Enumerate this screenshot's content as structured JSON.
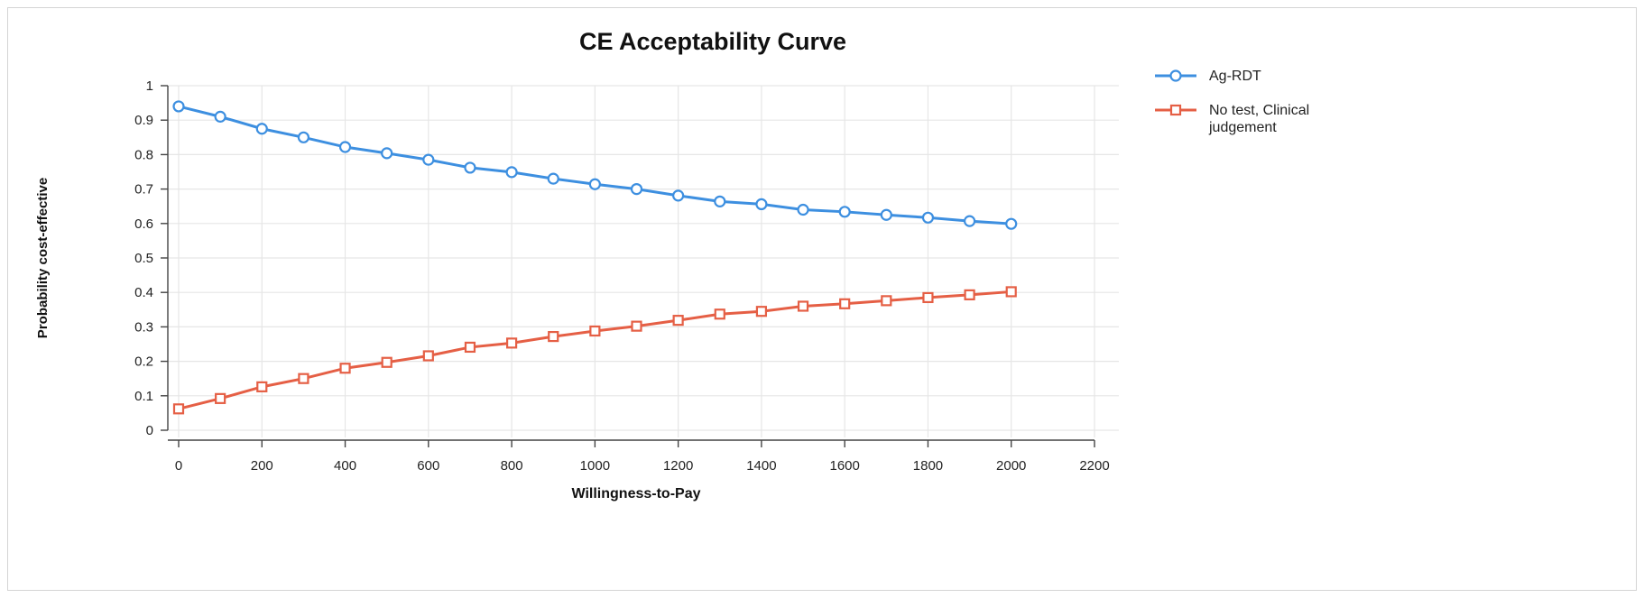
{
  "chart_data": {
    "type": "line",
    "title": "CE Acceptability Curve",
    "xlabel": "Willingness-to-Pay",
    "ylabel": "Probability cost-effective",
    "xlim": [
      0,
      2200
    ],
    "ylim": [
      0,
      1
    ],
    "x_ticks": [
      "0",
      "200",
      "400",
      "600",
      "800",
      "1000",
      "1200",
      "1400",
      "1600",
      "1800",
      "2000",
      "2200"
    ],
    "y_ticks": [
      "0",
      "0.1",
      "0.2",
      "0.3",
      "0.4",
      "0.5",
      "0.6",
      "0.7",
      "0.8",
      "0.9",
      "1"
    ],
    "grid": true,
    "legend_position": "right",
    "x": [
      0,
      100,
      200,
      300,
      400,
      500,
      600,
      700,
      800,
      900,
      1000,
      1100,
      1200,
      1300,
      1400,
      1500,
      1600,
      1700,
      1800,
      1900,
      2000
    ],
    "series": [
      {
        "name": "Ag-RDT",
        "color": "#3d8fe0",
        "marker": "circle",
        "values": [
          0.94,
          0.91,
          0.875,
          0.85,
          0.822,
          0.804,
          0.785,
          0.762,
          0.749,
          0.73,
          0.714,
          0.7,
          0.681,
          0.664,
          0.656,
          0.64,
          0.634,
          0.625,
          0.617,
          0.607,
          0.599
        ]
      },
      {
        "name": "No test, Clinical judgement",
        "color": "#e55f45",
        "marker": "square",
        "values": [
          0.062,
          0.092,
          0.126,
          0.15,
          0.18,
          0.197,
          0.216,
          0.241,
          0.253,
          0.272,
          0.288,
          0.302,
          0.319,
          0.337,
          0.345,
          0.36,
          0.367,
          0.376,
          0.385,
          0.393,
          0.402
        ]
      }
    ],
    "legend_labels": [
      [
        "Ag-RDT"
      ],
      [
        "No test, Clinical",
        "judgement"
      ]
    ]
  }
}
